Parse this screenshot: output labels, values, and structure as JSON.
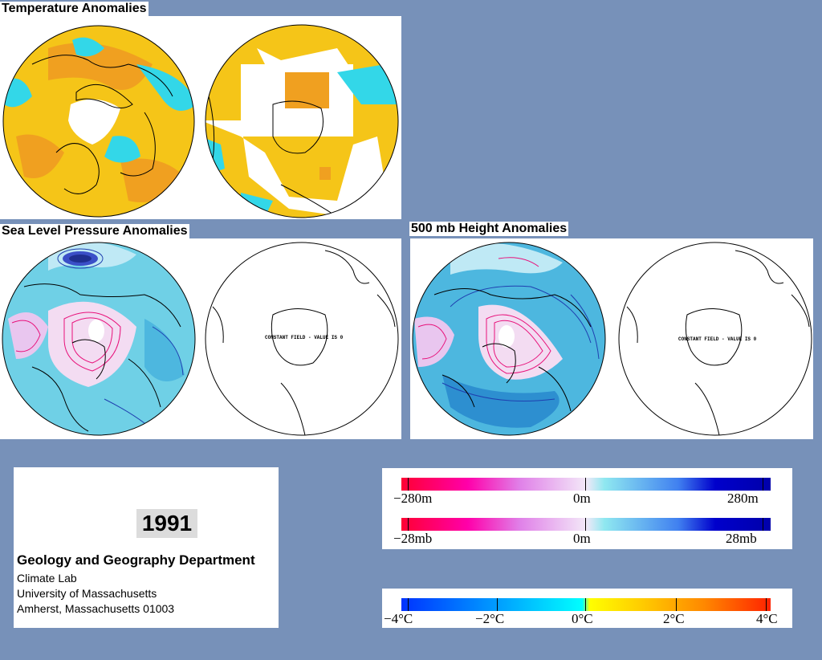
{
  "panels": {
    "temperature": {
      "title": "Temperature Anomalies"
    },
    "slp": {
      "title": "Sea Level Pressure Anomalies",
      "note": "CONSTANT FIELD - VALUE IS 0"
    },
    "height500": {
      "title": "500 mb Height Anomalies",
      "note": "CONSTANT FIELD - VALUE IS 0"
    }
  },
  "info": {
    "year": "1991",
    "department": "Geology and Geography Department",
    "lab": "Climate Lab",
    "university": "University of Massachusetts",
    "address": "Amherst, Massachusetts 01003"
  },
  "legends": {
    "height": {
      "min_label": "−280m",
      "mid_label": "0m",
      "max_label": "280m"
    },
    "pressure": {
      "min_label": "−28mb",
      "mid_label": "0m",
      "max_label": "28mb"
    },
    "temperature": {
      "labels": [
        "−4°C",
        "−2°C",
        "0°C",
        "2°C",
        "4°C"
      ]
    }
  },
  "colors": {
    "background": "#7791b9",
    "warm": "#f5c518",
    "warm_strong": "#f0a020",
    "cool": "#33d7e8",
    "cool_light": "#bfe9f5",
    "low": "#1f3fb0",
    "high": "#e8117a"
  }
}
